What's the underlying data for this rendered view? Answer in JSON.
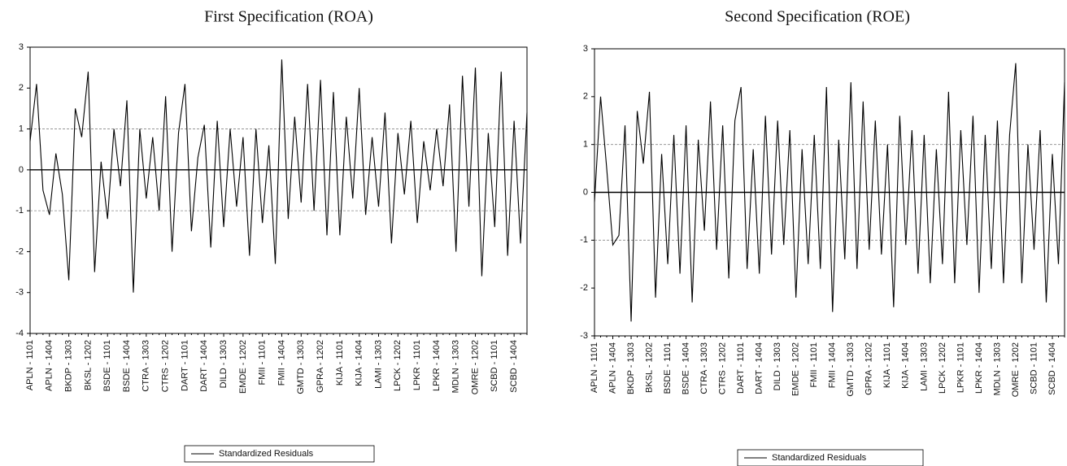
{
  "chart_data": [
    {
      "type": "line",
      "title": "First Specification (ROA)",
      "categories": [
        "APLN - 1101",
        null,
        null,
        "APLN - 1404",
        null,
        null,
        "BKDP - 1303",
        null,
        null,
        "BKSL - 1202",
        null,
        null,
        "BSDE - 1101",
        null,
        null,
        "BSDE - 1404",
        null,
        null,
        "CTRA - 1303",
        null,
        null,
        "CTRS - 1202",
        null,
        null,
        "DART - 1101",
        null,
        null,
        "DART - 1404",
        null,
        null,
        "DILD - 1303",
        null,
        null,
        "EMDE - 1202",
        null,
        null,
        "FMII - 1101",
        null,
        null,
        "FMII - 1404",
        null,
        null,
        "GMTD - 1303",
        null,
        null,
        "GPRA - 1202",
        null,
        null,
        "KIJA - 1101",
        null,
        null,
        "KIJA - 1404",
        null,
        null,
        "LAMI - 1303",
        null,
        null,
        "LPCK - 1202",
        null,
        null,
        "LPKR - 1101",
        null,
        null,
        "LPKR - 1404",
        null,
        null,
        "MDLN - 1303",
        null,
        null,
        "OMRE - 1202",
        null,
        null,
        "SCBD - 1101",
        null,
        null,
        "SCBD - 1404",
        null,
        null
      ],
      "series": [
        {
          "name": "Standardized Residuals",
          "color": "#000000",
          "values": [
            0.7,
            2.1,
            -0.5,
            -1.1,
            0.4,
            -0.6,
            -2.7,
            1.5,
            0.8,
            2.4,
            -2.5,
            0.2,
            -1.2,
            1.0,
            -0.4,
            1.7,
            -3.0,
            1.0,
            -0.7,
            0.8,
            -1.0,
            1.8,
            -2.0,
            0.9,
            2.1,
            -1.5,
            0.3,
            1.1,
            -1.9,
            1.2,
            -1.4,
            1.0,
            -0.9,
            0.8,
            -2.1,
            1.0,
            -1.3,
            0.6,
            -2.3,
            2.7,
            -1.2,
            1.3,
            -0.8,
            2.1,
            -1.0,
            2.2,
            -1.6,
            1.9,
            -1.6,
            1.3,
            -0.7,
            2.0,
            -1.1,
            0.8,
            -0.9,
            1.4,
            -1.8,
            0.9,
            -0.6,
            1.2,
            -1.3,
            0.7,
            -0.5,
            1.0,
            -0.4,
            1.6,
            -2.0,
            2.3,
            -0.9,
            2.5,
            -2.6,
            0.9,
            -1.4,
            2.4,
            -2.1,
            1.2,
            -1.8,
            1.4
          ]
        }
      ],
      "ylim": [
        -4,
        3
      ],
      "yticks": [
        -4,
        -3,
        -2,
        -1,
        0,
        1,
        2,
        3
      ],
      "reference_lines": [
        -1,
        0,
        1
      ]
    },
    {
      "type": "line",
      "title": "Second Specification (ROE)",
      "categories": [
        "APLN - 1101",
        null,
        null,
        "APLN - 1404",
        null,
        null,
        "BKDP - 1303",
        null,
        null,
        "BKSL - 1202",
        null,
        null,
        "BSDE - 1101",
        null,
        null,
        "BSDE - 1404",
        null,
        null,
        "CTRA - 1303",
        null,
        null,
        "CTRS - 1202",
        null,
        null,
        "DART - 1101",
        null,
        null,
        "DART - 1404",
        null,
        null,
        "DILD - 1303",
        null,
        null,
        "EMDE - 1202",
        null,
        null,
        "FMII - 1101",
        null,
        null,
        "FMII - 1404",
        null,
        null,
        "GMTD - 1303",
        null,
        null,
        "GPRA - 1202",
        null,
        null,
        "KIJA - 1101",
        null,
        null,
        "KIJA - 1404",
        null,
        null,
        "LAMI - 1303",
        null,
        null,
        "LPCK - 1202",
        null,
        null,
        "LPKR - 1101",
        null,
        null,
        "LPKR - 1404",
        null,
        null,
        "MDLN - 1303",
        null,
        null,
        "OMRE - 1202",
        null,
        null,
        "SCBD - 1101",
        null,
        null,
        "SCBD - 1404",
        null,
        null
      ],
      "series": [
        {
          "name": "Standardized Residuals",
          "color": "#000000",
          "values": [
            -0.2,
            2.0,
            0.5,
            -1.1,
            -0.9,
            1.4,
            -2.7,
            1.7,
            0.6,
            2.1,
            -2.2,
            0.8,
            -1.5,
            1.2,
            -1.7,
            1.4,
            -2.3,
            1.1,
            -0.8,
            1.9,
            -1.2,
            1.4,
            -1.8,
            1.5,
            2.2,
            -1.6,
            0.9,
            -1.7,
            1.6,
            -1.3,
            1.5,
            -1.1,
            1.3,
            -2.2,
            0.9,
            -1.5,
            1.2,
            -1.6,
            2.2,
            -2.5,
            1.1,
            -1.4,
            2.3,
            -1.6,
            1.9,
            -1.2,
            1.5,
            -1.3,
            1.0,
            -2.4,
            1.6,
            -1.1,
            1.3,
            -1.7,
            1.2,
            -1.9,
            0.9,
            -1.5,
            2.1,
            -1.9,
            1.3,
            -1.1,
            1.6,
            -2.1,
            1.2,
            -1.6,
            1.5,
            -1.9,
            1.2,
            2.7,
            -1.9,
            1.0,
            -1.2,
            1.3,
            -2.3,
            0.8,
            -1.5,
            2.3
          ]
        }
      ],
      "ylim": [
        -3,
        3
      ],
      "yticks": [
        -3,
        -2,
        -1,
        0,
        1,
        2,
        3
      ],
      "reference_lines": [
        -1,
        0,
        1
      ]
    }
  ]
}
